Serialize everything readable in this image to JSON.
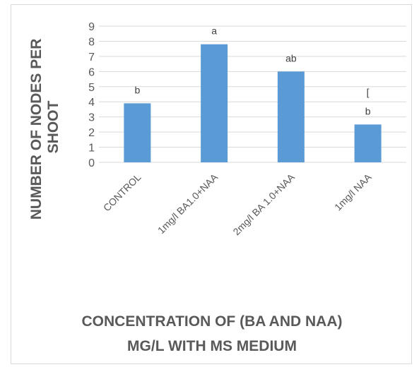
{
  "chart_data": {
    "type": "bar",
    "categories": [
      "CONTROL",
      "1mg/l BA1.0+NAA",
      "2mg/l BA 1.0+NAA",
      "1mg/l NAA"
    ],
    "values": [
      3.9,
      7.8,
      6.0,
      2.5
    ],
    "data_labels": [
      "b",
      "a",
      "ab",
      "[\nb"
    ],
    "ylabel_lines": [
      "NUMBER OF NODES PER",
      "SHOOT"
    ],
    "xlabel_lines": [
      "CONCENTRATION OF (BA AND NAA)",
      "MG/L  WITH MS MEDIUM"
    ],
    "ylim": [
      0,
      9
    ],
    "yticks": [
      0,
      1,
      2,
      3,
      4,
      5,
      6,
      7,
      8,
      9
    ],
    "grid": true,
    "bar_color": "#5b9bd5",
    "grid_color": "#d9d9d9"
  }
}
